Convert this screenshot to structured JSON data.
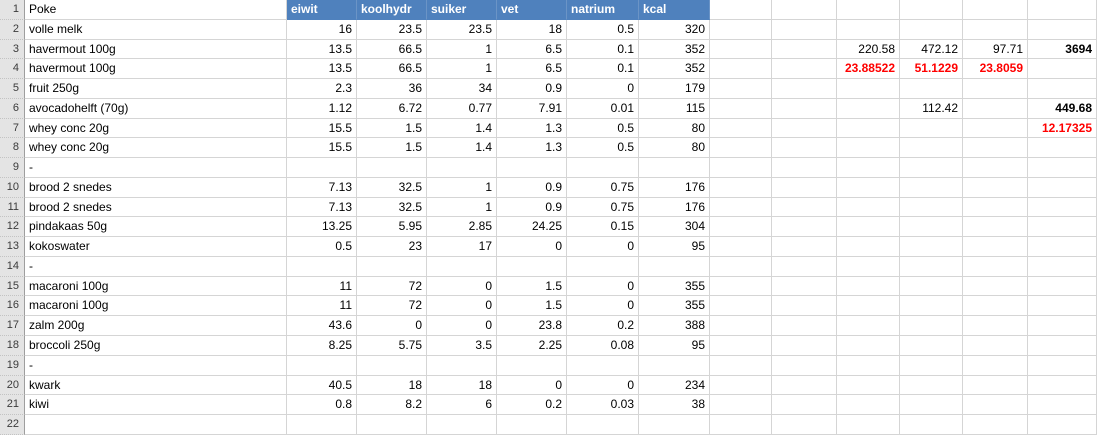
{
  "colors": {
    "header_bg": "#4F81BD",
    "header_text": "#FFFFFF",
    "gridline": "#D5D5D5",
    "row_header_bg": "#E4E4E4",
    "alert_red": "#FF0000"
  },
  "header": {
    "row_num": "1",
    "a1": "Poke",
    "columns": [
      "eiwit",
      "koolhydr",
      "suiker",
      "vet",
      "natrium",
      "kcal"
    ]
  },
  "rows": [
    {
      "num": "2",
      "label": "volle melk",
      "nutrients": [
        "16",
        "23.5",
        "23.5",
        "18",
        "0.5",
        "320"
      ],
      "extras": []
    },
    {
      "num": "3",
      "label": "havermout 100g",
      "nutrients": [
        "13.5",
        "66.5",
        "1",
        "6.5",
        "0.1",
        "352"
      ],
      "extras": [
        {
          "col": "J",
          "value": "220.58",
          "style": "plain"
        },
        {
          "col": "K",
          "value": "472.12",
          "style": "plain"
        },
        {
          "col": "L",
          "value": "97.71",
          "style": "plain"
        },
        {
          "col": "M",
          "value": "3694",
          "style": "bold"
        }
      ]
    },
    {
      "num": "4",
      "label": "havermout 100g",
      "nutrients": [
        "13.5",
        "66.5",
        "1",
        "6.5",
        "0.1",
        "352"
      ],
      "extras": [
        {
          "col": "J",
          "value": "23.88522",
          "style": "red-bold"
        },
        {
          "col": "K",
          "value": "51.1229",
          "style": "red-bold"
        },
        {
          "col": "L",
          "value": "23.8059",
          "style": "red-bold"
        }
      ]
    },
    {
      "num": "5",
      "label": "fruit 250g",
      "nutrients": [
        "2.3",
        "36",
        "34",
        "0.9",
        "0",
        "179"
      ],
      "extras": []
    },
    {
      "num": "6",
      "label": "avocadohelft (70g)",
      "nutrients": [
        "1.12",
        "6.72",
        "0.77",
        "7.91",
        "0.01",
        "115"
      ],
      "extras": [
        {
          "col": "K",
          "value": "112.42",
          "style": "plain"
        },
        {
          "col": "M",
          "value": "449.68",
          "style": "bold"
        }
      ]
    },
    {
      "num": "7",
      "label": "whey conc 20g",
      "nutrients": [
        "15.5",
        "1.5",
        "1.4",
        "1.3",
        "0.5",
        "80"
      ],
      "extras": [
        {
          "col": "M",
          "value": "12.17325",
          "style": "red-bold"
        }
      ]
    },
    {
      "num": "8",
      "label": "whey conc 20g",
      "nutrients": [
        "15.5",
        "1.5",
        "1.4",
        "1.3",
        "0.5",
        "80"
      ],
      "extras": []
    },
    {
      "num": "9",
      "label": "-",
      "nutrients": [
        "",
        "",
        "",
        "",
        "",
        ""
      ],
      "extras": []
    },
    {
      "num": "10",
      "label": "brood 2 snedes",
      "nutrients": [
        "7.13",
        "32.5",
        "1",
        "0.9",
        "0.75",
        "176"
      ],
      "extras": []
    },
    {
      "num": "11",
      "label": "brood 2 snedes",
      "nutrients": [
        "7.13",
        "32.5",
        "1",
        "0.9",
        "0.75",
        "176"
      ],
      "extras": []
    },
    {
      "num": "12",
      "label": "pindakaas 50g",
      "nutrients": [
        "13.25",
        "5.95",
        "2.85",
        "24.25",
        "0.15",
        "304"
      ],
      "extras": []
    },
    {
      "num": "13",
      "label": "kokoswater",
      "nutrients": [
        "0.5",
        "23",
        "17",
        "0",
        "0",
        "95"
      ],
      "extras": []
    },
    {
      "num": "14",
      "label": "-",
      "nutrients": [
        "",
        "",
        "",
        "",
        "",
        ""
      ],
      "extras": []
    },
    {
      "num": "15",
      "label": "macaroni 100g",
      "nutrients": [
        "11",
        "72",
        "0",
        "1.5",
        "0",
        "355"
      ],
      "extras": []
    },
    {
      "num": "16",
      "label": "macaroni 100g",
      "nutrients": [
        "11",
        "72",
        "0",
        "1.5",
        "0",
        "355"
      ],
      "extras": []
    },
    {
      "num": "17",
      "label": "zalm 200g",
      "nutrients": [
        "43.6",
        "0",
        "0",
        "23.8",
        "0.2",
        "388"
      ],
      "extras": []
    },
    {
      "num": "18",
      "label": "broccoli 250g",
      "nutrients": [
        "8.25",
        "5.75",
        "3.5",
        "2.25",
        "0.08",
        "95"
      ],
      "extras": []
    },
    {
      "num": "19",
      "label": "-",
      "nutrients": [
        "",
        "",
        "",
        "",
        "",
        ""
      ],
      "extras": []
    },
    {
      "num": "20",
      "label": "kwark",
      "nutrients": [
        "40.5",
        "18",
        "18",
        "0",
        "0",
        "234"
      ],
      "extras": []
    },
    {
      "num": "21",
      "label": "kiwi",
      "nutrients": [
        "0.8",
        "8.2",
        "6",
        "0.2",
        "0.03",
        "38"
      ],
      "extras": []
    },
    {
      "num": "22",
      "label": "",
      "nutrients": [
        "",
        "",
        "",
        "",
        "",
        ""
      ],
      "extras": []
    }
  ]
}
